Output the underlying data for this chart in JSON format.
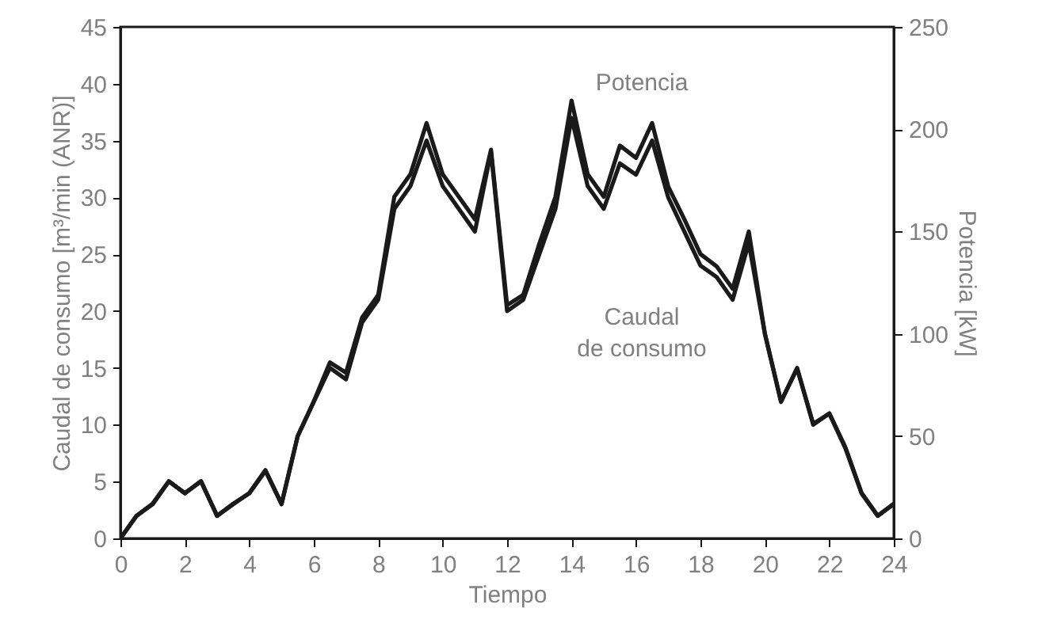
{
  "chart_data": {
    "type": "line",
    "xlabel": "Tiempo",
    "ylabel": "Caudal de consumo [m³/min (ANR)]",
    "y2label": "Potencia [kW]",
    "x": [
      0,
      0.5,
      1,
      1.5,
      2,
      2.5,
      3,
      3.5,
      4,
      4.5,
      5,
      5.5,
      6,
      6.5,
      7,
      7.5,
      8,
      8.5,
      9,
      9.5,
      10,
      10.5,
      11,
      11.5,
      12,
      12.5,
      13,
      13.5,
      14,
      14.5,
      15,
      15.5,
      16,
      16.5,
      17,
      17.5,
      18,
      18.5,
      19,
      19.5,
      20,
      20.5,
      21,
      21.5,
      22,
      22.5,
      23,
      23.5,
      24
    ],
    "series": [
      {
        "name": "Caudal de consumo",
        "color": "#1a1a1a",
        "values": [
          0,
          2,
          3,
          5,
          4,
          5,
          2,
          3,
          4,
          6,
          3,
          9,
          12,
          15,
          14,
          19,
          21,
          29,
          31,
          35,
          31,
          29,
          27,
          34,
          20,
          21,
          25,
          29,
          37,
          31,
          29,
          33,
          32,
          35,
          30,
          27,
          24,
          23,
          21,
          26,
          18,
          12,
          15,
          10,
          11,
          8,
          4,
          2,
          3
        ]
      },
      {
        "name": "Potencia",
        "color": "#1a1a1a",
        "axis": "y2",
        "values": [
          0,
          11,
          17,
          28,
          22,
          28,
          11,
          17,
          22,
          33,
          17,
          50,
          67,
          86,
          81,
          108,
          119,
          167,
          178,
          203,
          178,
          167,
          156,
          190,
          114,
          119,
          144,
          167,
          214,
          178,
          167,
          192,
          186,
          203,
          172,
          156,
          139,
          133,
          122,
          150,
          100,
          67,
          83,
          56,
          61,
          44,
          22,
          11,
          17
        ]
      }
    ],
    "xlim": [
      0,
      24
    ],
    "xticks": [
      0,
      2,
      4,
      6,
      8,
      10,
      12,
      14,
      16,
      18,
      20,
      22,
      24
    ],
    "ylim": [
      0,
      45
    ],
    "yticks": [
      0,
      5,
      10,
      15,
      20,
      25,
      30,
      35,
      40,
      45
    ],
    "y2lim": [
      0,
      250
    ],
    "y2ticks": [
      0,
      50,
      100,
      150,
      200,
      250
    ],
    "grid": false,
    "line_style": "solid",
    "marker": "none"
  }
}
